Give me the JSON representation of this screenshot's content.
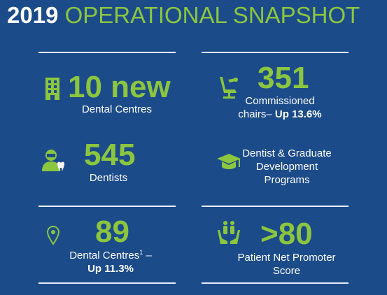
{
  "header": {
    "year": "2019",
    "title": "OPERATIONAL SNAPSHOT"
  },
  "stats": {
    "dental_centres_new": {
      "value": "10 new",
      "label": "Dental Centres",
      "icon": "building-icon"
    },
    "chairs": {
      "value": "351",
      "label_line1": "Commissioned",
      "label_line2": "chairs–",
      "label_emphasis": "Up 13.6%",
      "icon": "dental-chair-icon"
    },
    "dentists": {
      "value": "545",
      "label": "Dentists",
      "icon": "dentist-icon"
    },
    "programs": {
      "label_line1": "Dentist & Graduate",
      "label_line2": "Development",
      "label_line3": "Programs",
      "icon": "graduation-cap-icon"
    },
    "dental_centres_total": {
      "value": "89",
      "label_line1": "Dental Centres",
      "superscript": "1",
      "label_suffix": " –",
      "label_emphasis": "Up 11.3%",
      "icon": "location-pin-icon"
    },
    "nps": {
      "value": ">80",
      "label_line1": "Patient Net Promoter",
      "label_line2": "Score",
      "icon": "hands-people-icon"
    }
  },
  "colors": {
    "background": "#1c4b8a",
    "accent": "#8cc63f",
    "text": "#ffffff",
    "rule": "#e8edf4"
  }
}
